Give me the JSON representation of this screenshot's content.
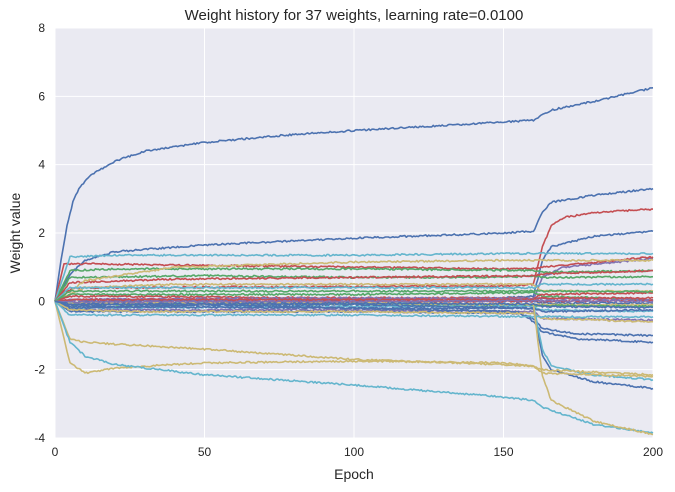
{
  "chart_data": {
    "type": "line",
    "title": "Weight history for 37 weights, learning rate=0.0100",
    "xlabel": "Epoch",
    "ylabel": "Weight value",
    "xlim": [
      0,
      200
    ],
    "ylim": [
      -4,
      8
    ],
    "xticks": [
      0,
      50,
      100,
      150,
      200
    ],
    "yticks": [
      -4,
      -2,
      0,
      2,
      4,
      6,
      8
    ],
    "grid": true,
    "legend": "none",
    "background": "#eaeaf2",
    "grid_color": "#ffffff",
    "text_color": "#262626",
    "series": [
      {
        "color": "#4c72b0",
        "points": [
          [
            0,
            0
          ],
          [
            2,
            1.2
          ],
          [
            4,
            2.2
          ],
          [
            6,
            2.9
          ],
          [
            8,
            3.3
          ],
          [
            12,
            3.7
          ],
          [
            20,
            4.1
          ],
          [
            30,
            4.4
          ],
          [
            50,
            4.65
          ],
          [
            75,
            4.85
          ],
          [
            100,
            5.0
          ],
          [
            125,
            5.12
          ],
          [
            150,
            5.25
          ],
          [
            160,
            5.3
          ],
          [
            163,
            5.45
          ],
          [
            166,
            5.6
          ],
          [
            180,
            5.85
          ],
          [
            200,
            6.25
          ]
        ]
      },
      {
        "color": "#4c72b0",
        "points": [
          [
            0,
            0
          ],
          [
            5,
            0.8
          ],
          [
            10,
            1.2
          ],
          [
            20,
            1.45
          ],
          [
            50,
            1.65
          ],
          [
            100,
            1.85
          ],
          [
            150,
            2.0
          ],
          [
            160,
            2.05
          ],
          [
            163,
            2.6
          ],
          [
            166,
            2.9
          ],
          [
            180,
            3.1
          ],
          [
            200,
            3.3
          ]
        ]
      },
      {
        "color": "#c44e52",
        "points": [
          [
            0,
            0
          ],
          [
            3,
            0.3
          ],
          [
            8,
            0.4
          ],
          [
            150,
            0.45
          ],
          [
            160,
            0.5
          ],
          [
            163,
            1.6
          ],
          [
            166,
            2.2
          ],
          [
            170,
            2.45
          ],
          [
            180,
            2.6
          ],
          [
            200,
            2.7
          ]
        ]
      },
      {
        "color": "#4c72b0",
        "points": [
          [
            0,
            0
          ],
          [
            3,
            -0.1
          ],
          [
            10,
            0.0
          ],
          [
            150,
            0.1
          ],
          [
            160,
            0.15
          ],
          [
            163,
            1.2
          ],
          [
            166,
            1.6
          ],
          [
            180,
            1.9
          ],
          [
            200,
            2.05
          ]
        ]
      },
      {
        "color": "#8172b2",
        "points": [
          [
            0,
            0
          ],
          [
            10,
            0.05
          ],
          [
            160,
            0.05
          ],
          [
            163,
            0.7
          ],
          [
            170,
            1.0
          ],
          [
            200,
            1.25
          ]
        ]
      },
      {
        "color": "#c44e52",
        "points": [
          [
            0,
            0
          ],
          [
            3,
            1.1
          ],
          [
            8,
            1.1
          ],
          [
            50,
            1.05
          ],
          [
            100,
            1.0
          ],
          [
            150,
            0.95
          ],
          [
            160,
            0.95
          ],
          [
            163,
            1.0
          ],
          [
            200,
            1.3
          ]
        ]
      },
      {
        "color": "#55a868",
        "points": [
          [
            0,
            0
          ],
          [
            5,
            0.9
          ],
          [
            20,
            0.95
          ],
          [
            100,
            0.95
          ],
          [
            160,
            0.9
          ],
          [
            163,
            0.85
          ],
          [
            200,
            0.9
          ]
        ]
      },
      {
        "color": "#64b5cd",
        "points": [
          [
            0,
            0
          ],
          [
            5,
            1.3
          ],
          [
            20,
            1.35
          ],
          [
            100,
            1.35
          ],
          [
            150,
            1.4
          ],
          [
            200,
            1.4
          ]
        ]
      },
      {
        "color": "#55a868",
        "points": [
          [
            0,
            0
          ],
          [
            5,
            0.7
          ],
          [
            50,
            0.75
          ],
          [
            100,
            0.7
          ],
          [
            150,
            0.7
          ],
          [
            160,
            0.75
          ],
          [
            163,
            0.7
          ],
          [
            200,
            0.72
          ]
        ]
      },
      {
        "color": "#c44e52",
        "points": [
          [
            0,
            0
          ],
          [
            5,
            0.55
          ],
          [
            40,
            0.65
          ],
          [
            100,
            0.7
          ],
          [
            160,
            0.75
          ],
          [
            163,
            0.8
          ],
          [
            200,
            0.9
          ]
        ]
      },
      {
        "color": "#ccb974",
        "points": [
          [
            0,
            0
          ],
          [
            10,
            0.6
          ],
          [
            40,
            1.0
          ],
          [
            100,
            1.15
          ],
          [
            150,
            1.2
          ],
          [
            200,
            1.2
          ]
        ]
      },
      {
        "color": "#ccb974",
        "points": [
          [
            0,
            0
          ],
          [
            10,
            0.4
          ],
          [
            40,
            0.5
          ],
          [
            100,
            0.5
          ],
          [
            160,
            0.5
          ],
          [
            163,
            0.3
          ],
          [
            200,
            0.3
          ]
        ]
      },
      {
        "color": "#64b5cd",
        "points": [
          [
            0,
            0
          ],
          [
            5,
            0.4
          ],
          [
            100,
            0.4
          ],
          [
            160,
            0.4
          ],
          [
            163,
            0.5
          ],
          [
            200,
            0.5
          ]
        ]
      },
      {
        "color": "#55a868",
        "points": [
          [
            0,
            0
          ],
          [
            5,
            0.2
          ],
          [
            100,
            0.2
          ],
          [
            160,
            0.25
          ],
          [
            163,
            0.15
          ],
          [
            200,
            0.05
          ]
        ]
      },
      {
        "color": "#c44e52",
        "points": [
          [
            0,
            0
          ],
          [
            5,
            0.15
          ],
          [
            100,
            0.1
          ],
          [
            160,
            0.1
          ],
          [
            163,
            0.2
          ],
          [
            200,
            0.25
          ]
        ]
      },
      {
        "color": "#8172b2",
        "points": [
          [
            0,
            0
          ],
          [
            5,
            0.05
          ],
          [
            100,
            0.1
          ],
          [
            160,
            0.08
          ],
          [
            200,
            0.05
          ]
        ]
      },
      {
        "color": "#4c72b0",
        "points": [
          [
            0,
            0
          ],
          [
            5,
            -0.05
          ],
          [
            100,
            0.0
          ],
          [
            160,
            0.0
          ],
          [
            163,
            -0.05
          ],
          [
            200,
            -0.05
          ]
        ]
      },
      {
        "color": "#ccb974",
        "points": [
          [
            0,
            0
          ],
          [
            5,
            -0.05
          ],
          [
            100,
            -0.05
          ],
          [
            160,
            -0.1
          ],
          [
            200,
            -0.1
          ]
        ]
      },
      {
        "color": "#55a868",
        "points": [
          [
            0,
            0
          ],
          [
            5,
            -0.1
          ],
          [
            100,
            -0.08
          ],
          [
            160,
            -0.12
          ],
          [
            200,
            -0.15
          ]
        ]
      },
      {
        "color": "#64b5cd",
        "points": [
          [
            0,
            0
          ],
          [
            5,
            -0.2
          ],
          [
            100,
            -0.15
          ],
          [
            160,
            -0.15
          ],
          [
            163,
            -0.25
          ],
          [
            200,
            -0.3
          ]
        ]
      },
      {
        "color": "#4c72b0",
        "points": [
          [
            0,
            0
          ],
          [
            5,
            -0.15
          ],
          [
            100,
            -0.2
          ],
          [
            160,
            -0.2
          ],
          [
            163,
            -0.3
          ],
          [
            200,
            -0.25
          ]
        ]
      },
      {
        "color": "#8172b2",
        "points": [
          [
            0,
            0
          ],
          [
            5,
            -0.25
          ],
          [
            100,
            -0.25
          ],
          [
            160,
            -0.3
          ],
          [
            163,
            -0.5
          ],
          [
            200,
            -0.55
          ]
        ]
      },
      {
        "color": "#4c72b0",
        "points": [
          [
            0,
            0
          ],
          [
            5,
            -0.3
          ],
          [
            50,
            -0.3
          ],
          [
            100,
            -0.3
          ],
          [
            155,
            -0.35
          ],
          [
            160,
            -0.5
          ],
          [
            163,
            -0.8
          ],
          [
            175,
            -0.95
          ],
          [
            200,
            -1.0
          ]
        ]
      },
      {
        "color": "#4c72b0",
        "points": [
          [
            0,
            0
          ],
          [
            5,
            -0.2
          ],
          [
            50,
            -0.1
          ],
          [
            100,
            -0.2
          ],
          [
            155,
            -0.3
          ],
          [
            160,
            -0.6
          ],
          [
            163,
            -0.9
          ],
          [
            175,
            -1.1
          ],
          [
            200,
            -1.2
          ]
        ]
      },
      {
        "color": "#c44e52",
        "points": [
          [
            0,
            0
          ],
          [
            5,
            -0.05
          ],
          [
            100,
            0.0
          ],
          [
            160,
            0.0
          ],
          [
            200,
            0.02
          ]
        ]
      },
      {
        "color": "#ccb974",
        "points": [
          [
            0,
            0
          ],
          [
            5,
            -0.25
          ],
          [
            30,
            -0.3
          ],
          [
            100,
            -0.3
          ],
          [
            160,
            -0.35
          ],
          [
            163,
            -0.5
          ],
          [
            200,
            -0.6
          ]
        ]
      },
      {
        "color": "#64b5cd",
        "points": [
          [
            0,
            0
          ],
          [
            5,
            -0.4
          ],
          [
            30,
            -0.4
          ],
          [
            100,
            -0.4
          ],
          [
            160,
            -0.45
          ],
          [
            200,
            -0.45
          ]
        ]
      },
      {
        "color": "#4c72b0",
        "points": [
          [
            0,
            0
          ],
          [
            5,
            -0.1
          ],
          [
            100,
            -0.1
          ],
          [
            160,
            -0.2
          ],
          [
            163,
            -1.6
          ],
          [
            166,
            -2.0
          ],
          [
            180,
            -2.35
          ],
          [
            200,
            -2.55
          ]
        ]
      },
      {
        "color": "#64b5cd",
        "points": [
          [
            0,
            0
          ],
          [
            5,
            -0.05
          ],
          [
            100,
            -0.05
          ],
          [
            160,
            -0.1
          ],
          [
            163,
            -1.4
          ],
          [
            166,
            -1.9
          ],
          [
            180,
            -2.15
          ],
          [
            200,
            -2.3
          ]
        ]
      },
      {
        "color": "#ccb974",
        "points": [
          [
            0,
            0
          ],
          [
            5,
            -1.1
          ],
          [
            10,
            -1.2
          ],
          [
            50,
            -1.4
          ],
          [
            100,
            -1.7
          ],
          [
            150,
            -1.85
          ],
          [
            160,
            -1.9
          ],
          [
            163,
            -2.0
          ],
          [
            200,
            -2.15
          ]
        ]
      },
      {
        "color": "#ccb974",
        "points": [
          [
            0,
            0
          ],
          [
            5,
            -1.8
          ],
          [
            10,
            -2.1
          ],
          [
            20,
            -1.95
          ],
          [
            50,
            -1.8
          ],
          [
            100,
            -1.75
          ],
          [
            150,
            -1.8
          ],
          [
            160,
            -1.9
          ],
          [
            163,
            -2.1
          ],
          [
            200,
            -2.2
          ]
        ]
      },
      {
        "color": "#64b5cd",
        "points": [
          [
            0,
            0
          ],
          [
            5,
            -1.2
          ],
          [
            10,
            -1.6
          ],
          [
            20,
            -1.85
          ],
          [
            50,
            -2.15
          ],
          [
            100,
            -2.45
          ],
          [
            150,
            -2.8
          ],
          [
            160,
            -2.9
          ],
          [
            163,
            -3.1
          ],
          [
            180,
            -3.6
          ],
          [
            200,
            -3.85
          ]
        ]
      },
      {
        "color": "#ccb974",
        "points": [
          [
            0,
            0
          ],
          [
            5,
            -0.05
          ],
          [
            100,
            -0.05
          ],
          [
            160,
            -0.1
          ],
          [
            163,
            -2.2
          ],
          [
            166,
            -2.9
          ],
          [
            180,
            -3.5
          ],
          [
            200,
            -3.9
          ]
        ]
      },
      {
        "color": "#c44e52",
        "points": [
          [
            0,
            0
          ],
          [
            5,
            0.05
          ],
          [
            100,
            0.05
          ],
          [
            160,
            0.05
          ],
          [
            163,
            0.1
          ],
          [
            200,
            0.1
          ]
        ]
      },
      {
        "color": "#55a868",
        "points": [
          [
            0,
            0
          ],
          [
            5,
            0.3
          ],
          [
            100,
            0.3
          ],
          [
            160,
            0.3
          ],
          [
            200,
            0.28
          ]
        ]
      },
      {
        "color": "#8172b2",
        "points": [
          [
            0,
            0
          ],
          [
            5,
            -0.02
          ],
          [
            100,
            0.0
          ],
          [
            160,
            0.02
          ],
          [
            200,
            0.0
          ]
        ]
      },
      {
        "color": "#4c72b0",
        "points": [
          [
            0,
            0
          ],
          [
            5,
            -0.08
          ],
          [
            100,
            -0.06
          ],
          [
            160,
            -0.08
          ],
          [
            163,
            -0.15
          ],
          [
            200,
            -0.18
          ]
        ]
      }
    ]
  }
}
